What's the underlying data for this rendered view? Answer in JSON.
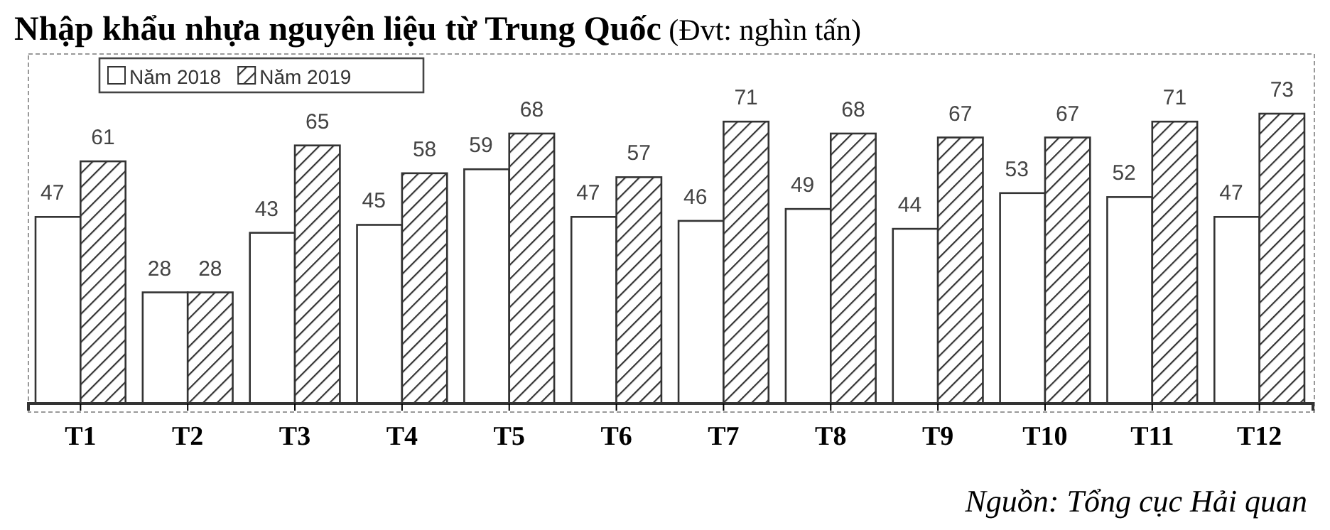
{
  "chart_data": {
    "type": "bar",
    "title": "Nhập khẩu nhựa nguyên liệu từ Trung Quốc",
    "subtitle": "(Đvt: nghìn tấn)",
    "categories": [
      "T1",
      "T2",
      "T3",
      "T4",
      "T5",
      "T6",
      "T7",
      "T8",
      "T9",
      "T10",
      "T11",
      "T12"
    ],
    "series": [
      {
        "name": "Năm 2018",
        "color": "#ffffff",
        "values": [
          47,
          28,
          43,
          45,
          59,
          47,
          46,
          49,
          44,
          53,
          52,
          47
        ]
      },
      {
        "name": "Năm 2019",
        "color": "#333333",
        "values": [
          61,
          28,
          65,
          58,
          68,
          57,
          71,
          68,
          67,
          67,
          71,
          73
        ]
      }
    ],
    "data_labels": true,
    "legend": "top left",
    "grid": false,
    "annotations": [
      "Nguồn: Tổng cục Hải quan"
    ]
  }
}
